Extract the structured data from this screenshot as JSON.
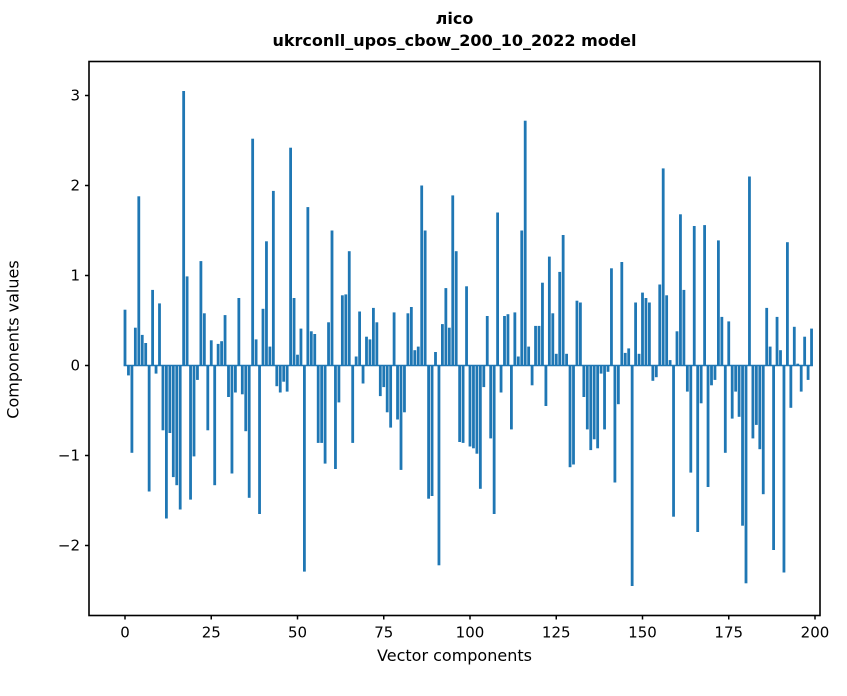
{
  "window": {
    "background": "#ffffff"
  },
  "chart_data": {
    "type": "bar",
    "title_line1": "лісо",
    "title_line2": "ukrconll_upos_cbow_200_10_2022 model",
    "xlabel": "Vector components",
    "ylabel": "Components values",
    "x_ticks": [
      0,
      25,
      50,
      75,
      100,
      125,
      150,
      175,
      200
    ],
    "y_ticks": [
      3,
      2,
      1,
      0,
      -1,
      -2
    ],
    "xlim": [
      -10.4,
      201.4
    ],
    "ylim": [
      -2.78,
      3.38
    ],
    "grid": false,
    "legend": null,
    "bar_color": "#1f77b4",
    "spine_color": "#000000",
    "n_components": 200,
    "values": [
      0.62,
      -0.11,
      -0.97,
      0.42,
      1.88,
      0.34,
      0.25,
      -1.4,
      0.84,
      -0.09,
      0.69,
      -0.72,
      -1.7,
      -0.75,
      -1.24,
      -1.33,
      -1.6,
      3.05,
      0.99,
      -1.49,
      -1.01,
      -0.16,
      1.16,
      0.58,
      -0.72,
      0.28,
      -1.33,
      0.24,
      0.27,
      0.56,
      -0.35,
      -1.2,
      -0.3,
      0.75,
      -0.32,
      -0.73,
      -1.47,
      2.52,
      0.29,
      -1.65,
      0.63,
      1.38,
      0.21,
      1.94,
      -0.23,
      -0.3,
      -0.18,
      -0.29,
      2.42,
      0.75,
      0.12,
      0.41,
      -2.29,
      1.76,
      0.38,
      0.35,
      -0.86,
      -0.86,
      -1.09,
      0.48,
      1.5,
      -1.15,
      -0.41,
      0.78,
      0.79,
      1.27,
      -0.86,
      0.1,
      0.6,
      -0.2,
      0.32,
      0.29,
      0.64,
      0.48,
      -0.34,
      -0.24,
      -0.52,
      -0.69,
      0.59,
      -0.6,
      -1.16,
      -0.52,
      0.58,
      0.65,
      0.17,
      0.21,
      2.0,
      1.5,
      -1.48,
      -1.45,
      0.15,
      -2.22,
      0.46,
      0.86,
      0.42,
      1.89,
      1.27,
      -0.85,
      -0.86,
      0.88,
      -0.9,
      -0.92,
      -0.98,
      -1.37,
      -0.24,
      0.55,
      -0.81,
      -1.65,
      1.7,
      -0.3,
      0.55,
      0.57,
      -0.71,
      0.59,
      0.1,
      1.5,
      2.72,
      0.21,
      -0.22,
      0.44,
      0.44,
      0.92,
      -0.45,
      1.21,
      0.58,
      0.13,
      1.04,
      1.45,
      0.13,
      -1.13,
      -1.1,
      0.72,
      0.7,
      -0.35,
      -0.71,
      -0.94,
      -0.82,
      -0.92,
      -0.09,
      -0.71,
      -0.07,
      1.08,
      -1.3,
      -0.43,
      1.15,
      0.14,
      0.19,
      -2.45,
      0.7,
      0.13,
      0.81,
      0.75,
      0.7,
      -0.17,
      -0.13,
      0.9,
      2.19,
      0.78,
      0.06,
      -1.68,
      0.38,
      1.68,
      0.84,
      -0.29,
      -1.19,
      1.55,
      -1.85,
      -0.42,
      1.56,
      -1.35,
      -0.22,
      -0.16,
      1.39,
      0.54,
      -0.97,
      0.49,
      -0.59,
      -0.29,
      -0.57,
      -1.78,
      -2.42,
      2.1,
      -0.81,
      -0.66,
      -0.93,
      -1.43,
      0.64,
      0.21,
      -2.05,
      0.54,
      0.17,
      -2.3,
      1.37,
      -0.47,
      0.43,
      0.02,
      -0.29,
      0.32,
      -0.16,
      0.41
    ]
  }
}
